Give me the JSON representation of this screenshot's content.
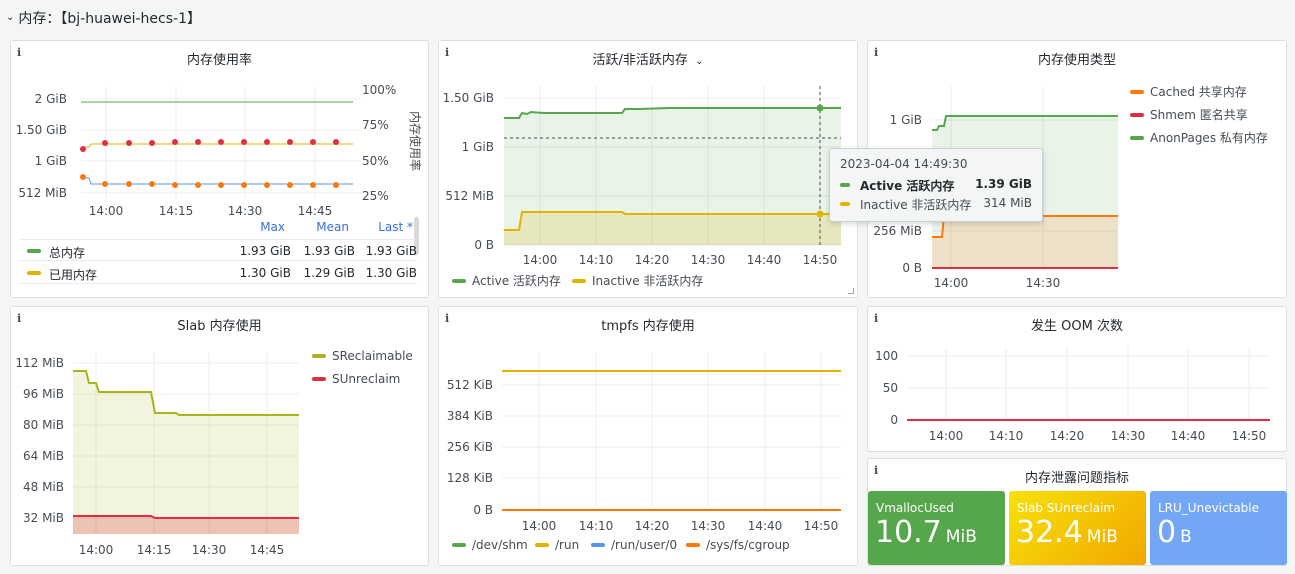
{
  "row": {
    "title": "内存：【bj-huawei-hecs-1】"
  },
  "panels": {
    "mem_usage": {
      "title": "内存使用率",
      "y_left_ticks": [
        "2 GiB",
        "1.50 GiB",
        "1 GiB",
        "512 MiB"
      ],
      "y_right_ticks": [
        "100%",
        "75%",
        "50%",
        "25%"
      ],
      "y_right_label": "内存使用率",
      "x_ticks": [
        "14:00",
        "14:15",
        "14:30",
        "14:45"
      ],
      "legend_headers": [
        "Max",
        "Mean",
        "Last *"
      ],
      "legend_rows": [
        {
          "name": "总内存",
          "color": "#56a64b",
          "max": "1.93 GiB",
          "mean": "1.93 GiB",
          "last": "1.93 GiB"
        },
        {
          "name": "已用内存",
          "color": "#e0b400",
          "max": "1.30 GiB",
          "mean": "1.29 GiB",
          "last": "1.30 GiB"
        }
      ]
    },
    "active": {
      "title": "活跃/非活跃内存",
      "y_ticks": [
        "1.50 GiB",
        "1 GiB",
        "512 MiB",
        "0 B"
      ],
      "x_ticks": [
        "14:00",
        "14:10",
        "14:20",
        "14:30",
        "14:40",
        "14:50"
      ],
      "legend": [
        {
          "name": "Active 活跃内存",
          "color": "#56a64b"
        },
        {
          "name": "Inactive 非活跃内存",
          "color": "#e0b400"
        }
      ],
      "tooltip": {
        "time": "2023-04-04 14:49:30",
        "rows": [
          {
            "name": "Active 活跃内存",
            "value": "1.39 GiB",
            "color": "#56a64b"
          },
          {
            "name": "Inactive 非活跃内存",
            "value": "314 MiB",
            "color": "#e0b400"
          }
        ]
      }
    },
    "mem_type": {
      "title": "内存使用类型",
      "y_ticks": [
        "1 GiB",
        "256 MiB",
        "0 B"
      ],
      "x_ticks": [
        "14:00",
        "14:30"
      ],
      "legend": [
        {
          "name": "Cached 共享内存",
          "color": "#ff780a"
        },
        {
          "name": "Shmem 匿名共享",
          "color": "#e02f44"
        },
        {
          "name": "AnonPages 私有内存",
          "color": "#56a64b"
        }
      ]
    },
    "slab": {
      "title": "Slab 内存使用",
      "y_ticks": [
        "112 MiB",
        "96 MiB",
        "80 MiB",
        "64 MiB",
        "48 MiB",
        "32 MiB"
      ],
      "x_ticks": [
        "14:00",
        "14:15",
        "14:30",
        "14:45"
      ],
      "legend": [
        {
          "name": "SReclaimable",
          "color": "#aab41a"
        },
        {
          "name": "SUnreclaim",
          "color": "#e02f44"
        }
      ]
    },
    "tmpfs": {
      "title": "tmpfs 内存使用",
      "y_ticks": [
        "512 KiB",
        "384 KiB",
        "256 KiB",
        "128 KiB",
        "0 B"
      ],
      "x_ticks": [
        "14:00",
        "14:10",
        "14:20",
        "14:30",
        "14:40",
        "14:50"
      ],
      "legend": [
        {
          "name": "/dev/shm",
          "color": "#56a64b"
        },
        {
          "name": "/run",
          "color": "#e0b400"
        },
        {
          "name": "/run/user/0",
          "color": "#5794f2"
        },
        {
          "name": "/sys/fs/cgroup",
          "color": "#ff780a"
        }
      ]
    },
    "oom": {
      "title": "发生 OOM 次数",
      "y_ticks": [
        "100",
        "50",
        "0"
      ],
      "x_ticks": [
        "14:00",
        "14:10",
        "14:20",
        "14:30",
        "14:40",
        "14:50"
      ]
    },
    "leak": {
      "title": "内存泄露问题指标",
      "stats": [
        {
          "label": "VmallocUsed",
          "value": "10.7",
          "unit": "MiB",
          "color": "#56a64b"
        },
        {
          "label": "Slab SUnreclaim",
          "value": "32.4",
          "unit": "MiB",
          "color": "#f2b705"
        },
        {
          "label": "LRU_Unevictable",
          "value": "0",
          "unit": "B",
          "color": "#73a6f5"
        }
      ]
    }
  }
}
